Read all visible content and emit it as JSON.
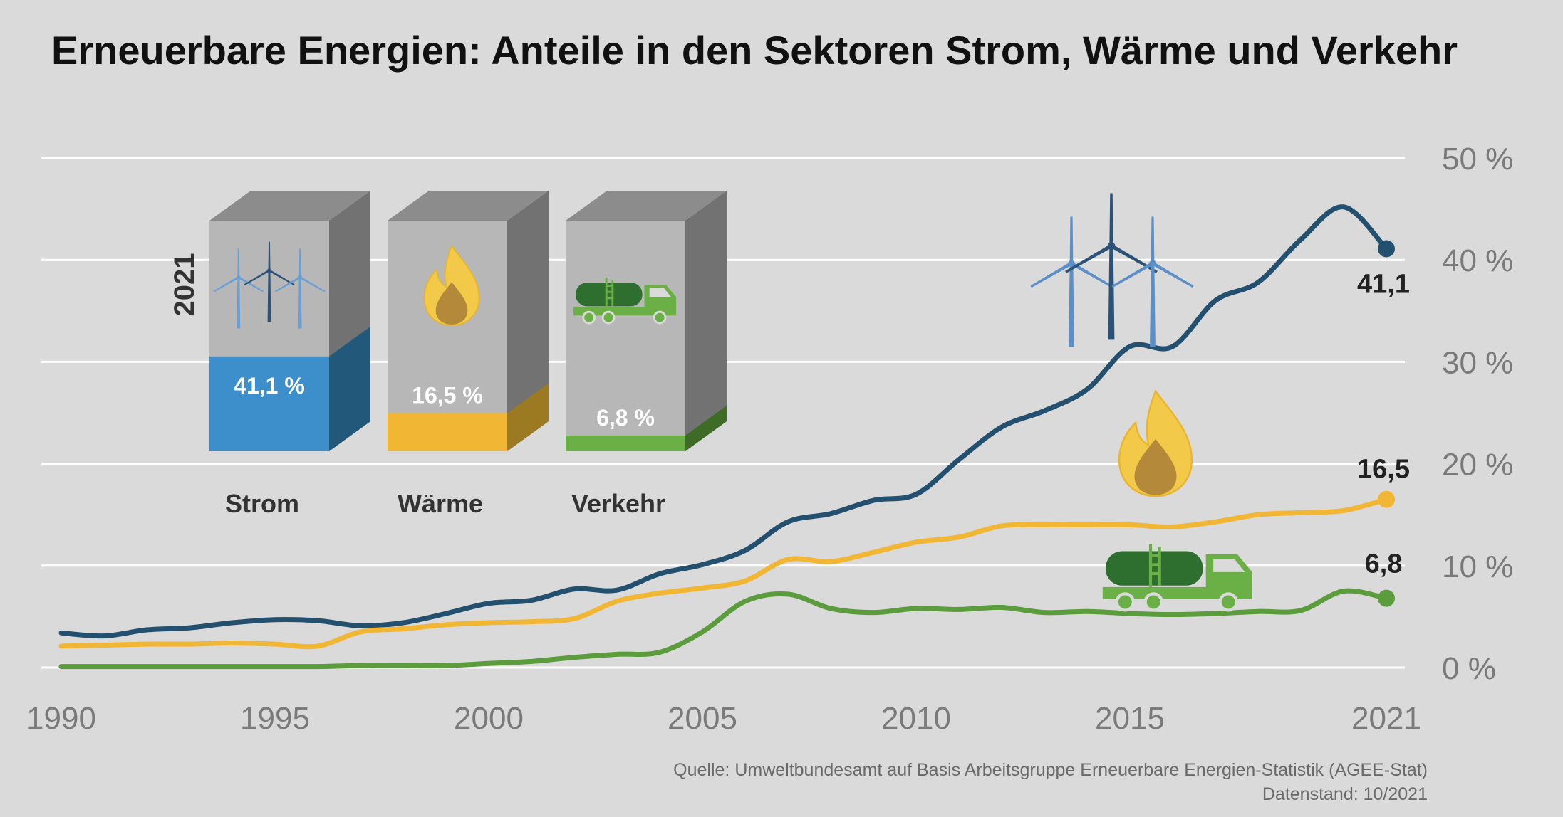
{
  "title": "Erneuerbare Energien: Anteile in den Sektoren Strom, Wärme und Verkehr",
  "source_lines": [
    "Quelle: Umweltbundesamt auf Basis Arbeitsgruppe Erneuerbare Energien-Statistik (AGEE-Stat)",
    "Datenstand: 10/2021"
  ],
  "colors": {
    "background": "#dadada",
    "strom": "#24506f",
    "strom_box": "#3d8fcc",
    "waerme": "#f0b634",
    "verkehr": "#5b9c3c",
    "grid": "#ffffff"
  },
  "chart_data": {
    "type": "line",
    "title": "Erneuerbare Energien: Anteile in den Sektoren Strom, Wärme und Verkehr",
    "x_ticks": [
      "1990",
      "1995",
      "2000",
      "2005",
      "2010",
      "2015",
      "2021"
    ],
    "x_tick_years": [
      1990,
      1995,
      2000,
      2005,
      2010,
      2015,
      2021
    ],
    "y_ticks": [
      "0 %",
      "10 %",
      "20 %",
      "30 %",
      "40 %",
      "50 %"
    ],
    "y_tick_values": [
      0,
      10,
      20,
      30,
      40,
      50
    ],
    "xlim": [
      1990,
      2021
    ],
    "ylim": [
      0,
      50
    ],
    "grid": true,
    "x": [
      1990,
      1991,
      1992,
      1993,
      1994,
      1995,
      1996,
      1997,
      1998,
      1999,
      2000,
      2001,
      2002,
      2003,
      2004,
      2005,
      2006,
      2007,
      2008,
      2009,
      2010,
      2011,
      2012,
      2013,
      2014,
      2015,
      2016,
      2017,
      2018,
      2019,
      2020,
      2021
    ],
    "series": [
      {
        "name": "Strom",
        "color": "#24506f",
        "values": [
          3.4,
          3.1,
          3.7,
          3.9,
          4.4,
          4.7,
          4.6,
          4.1,
          4.4,
          5.3,
          6.3,
          6.6,
          7.7,
          7.6,
          9.2,
          10.1,
          11.5,
          14.3,
          15.1,
          16.4,
          17.0,
          20.4,
          23.6,
          25.2,
          27.3,
          31.5,
          31.5,
          36.0,
          37.8,
          42.0,
          45.2,
          41.1
        ],
        "end_label": "41,1"
      },
      {
        "name": "Wärme",
        "color": "#f0b634",
        "values": [
          2.1,
          2.2,
          2.3,
          2.3,
          2.4,
          2.3,
          2.1,
          3.5,
          3.8,
          4.2,
          4.4,
          4.5,
          4.8,
          6.5,
          7.3,
          7.8,
          8.5,
          10.6,
          10.4,
          11.3,
          12.3,
          12.8,
          13.9,
          14.0,
          14.0,
          14.0,
          13.8,
          14.3,
          15.0,
          15.2,
          15.4,
          16.5
        ],
        "end_label": "16,5"
      },
      {
        "name": "Verkehr",
        "color": "#5b9c3c",
        "values": [
          0.1,
          0.1,
          0.1,
          0.1,
          0.1,
          0.1,
          0.1,
          0.2,
          0.2,
          0.2,
          0.4,
          0.6,
          1.0,
          1.3,
          1.5,
          3.5,
          6.5,
          7.2,
          5.8,
          5.4,
          5.8,
          5.7,
          5.9,
          5.4,
          5.5,
          5.3,
          5.2,
          5.3,
          5.5,
          5.6,
          7.5,
          6.8
        ],
        "end_label": "6,8"
      }
    ],
    "inset": {
      "year_label": "2021",
      "boxes": [
        {
          "label": "Strom",
          "value": 41.1,
          "value_label": "41,1 %",
          "icon": "wind-turbines-icon"
        },
        {
          "label": "Wärme",
          "value": 16.5,
          "value_label": "16,5 %",
          "icon": "flame-icon"
        },
        {
          "label": "Verkehr",
          "value": 6.8,
          "value_label": "6,8 %",
          "icon": "tank-truck-icon"
        }
      ]
    }
  }
}
